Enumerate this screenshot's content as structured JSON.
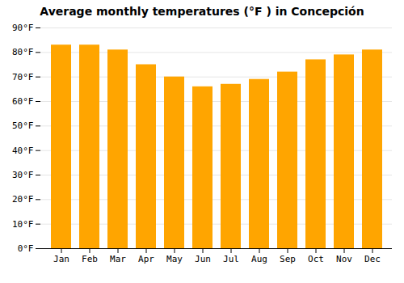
{
  "chart_data": {
    "type": "bar",
    "title": "Average monthly temperatures (°F ) in Concepción",
    "categories": [
      "Jan",
      "Feb",
      "Mar",
      "Apr",
      "May",
      "Jun",
      "Jul",
      "Aug",
      "Sep",
      "Oct",
      "Nov",
      "Dec"
    ],
    "values": [
      83,
      83,
      81,
      75,
      70,
      66,
      67,
      69,
      72,
      77,
      79,
      81
    ],
    "color": "#FFA500",
    "ylim": [
      0,
      90
    ],
    "yticks": [
      {
        "value": 0,
        "label": "0°F"
      },
      {
        "value": 10,
        "label": "10°F"
      },
      {
        "value": 20,
        "label": "20°F"
      },
      {
        "value": 30,
        "label": "30°F"
      },
      {
        "value": 40,
        "label": "40°F"
      },
      {
        "value": 50,
        "label": "50°F"
      },
      {
        "value": 60,
        "label": "60°F"
      },
      {
        "value": 70,
        "label": "70°F"
      },
      {
        "value": 80,
        "label": "80°F"
      },
      {
        "value": 90,
        "label": "90°F"
      }
    ],
    "grid": true
  }
}
